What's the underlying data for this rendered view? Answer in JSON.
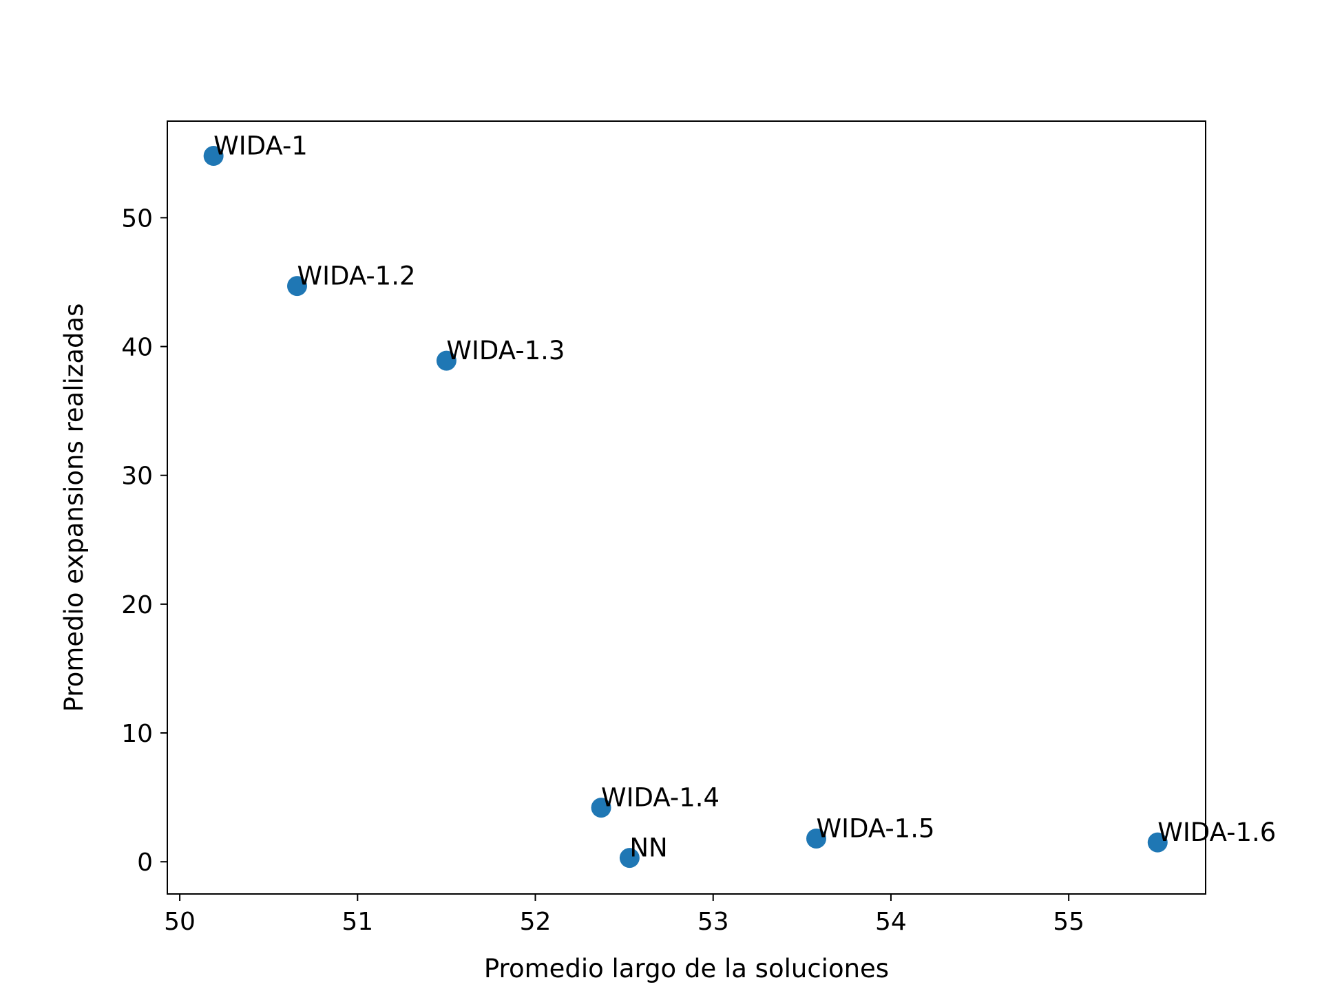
{
  "chart_data": {
    "type": "scatter",
    "title": "",
    "xlabel": "Promedio largo de la soluciones",
    "ylabel": "Promedio expansions realizadas",
    "xlim": [
      49.93,
      55.77
    ],
    "ylim": [
      -2.5,
      57.5
    ],
    "xticks": [
      50,
      51,
      52,
      53,
      54,
      55
    ],
    "yticks": [
      0,
      10,
      20,
      30,
      40,
      50
    ],
    "grid": false,
    "legend": "none",
    "marker_color": "#1f77b4",
    "points": [
      {
        "label": "WIDA-1",
        "x": 50.19,
        "y": 54.8
      },
      {
        "label": "WIDA-1.2",
        "x": 50.66,
        "y": 44.7
      },
      {
        "label": "WIDA-1.3",
        "x": 51.5,
        "y": 38.9
      },
      {
        "label": "WIDA-1.4",
        "x": 52.37,
        "y": 4.2
      },
      {
        "label": "NN",
        "x": 52.53,
        "y": 0.3
      },
      {
        "label": "WIDA-1.5",
        "x": 53.58,
        "y": 1.8
      },
      {
        "label": "WIDA-1.6",
        "x": 55.5,
        "y": 1.5
      }
    ]
  }
}
